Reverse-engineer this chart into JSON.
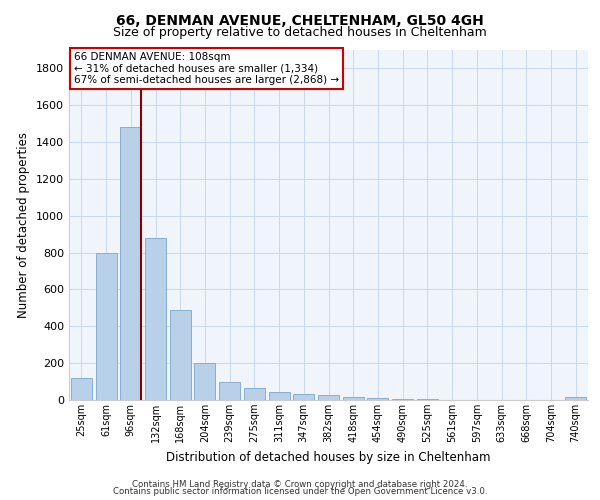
{
  "title1": "66, DENMAN AVENUE, CHELTENHAM, GL50 4GH",
  "title2": "Size of property relative to detached houses in Cheltenham",
  "xlabel": "Distribution of detached houses by size in Cheltenham",
  "ylabel": "Number of detached properties",
  "categories": [
    "25sqm",
    "61sqm",
    "96sqm",
    "132sqm",
    "168sqm",
    "204sqm",
    "239sqm",
    "275sqm",
    "311sqm",
    "347sqm",
    "382sqm",
    "418sqm",
    "454sqm",
    "490sqm",
    "525sqm",
    "561sqm",
    "597sqm",
    "633sqm",
    "668sqm",
    "704sqm",
    "740sqm"
  ],
  "values": [
    120,
    800,
    1480,
    880,
    490,
    200,
    100,
    65,
    45,
    30,
    25,
    15,
    10,
    5,
    3,
    2,
    1,
    1,
    1,
    1,
    15
  ],
  "bar_color": "#b8d0e8",
  "bar_edge_color": "#88aed0",
  "vline_x_idx": 2,
  "vline_color": "#880000",
  "annotation_line1": "66 DENMAN AVENUE: 108sqm",
  "annotation_line2": "← 31% of detached houses are smaller (1,334)",
  "annotation_line3": "67% of semi-detached houses are larger (2,868) →",
  "annotation_box_color": "#ffffff",
  "annotation_box_edge": "#cc0000",
  "ylim": [
    0,
    1900
  ],
  "yticks": [
    0,
    200,
    400,
    600,
    800,
    1000,
    1200,
    1400,
    1600,
    1800
  ],
  "footer1": "Contains HM Land Registry data © Crown copyright and database right 2024.",
  "footer2": "Contains public sector information licensed under the Open Government Licence v3.0.",
  "bg_color": "#f0f5fb",
  "grid_color": "#c8d8ea",
  "title1_fontsize": 10,
  "title2_fontsize": 9
}
